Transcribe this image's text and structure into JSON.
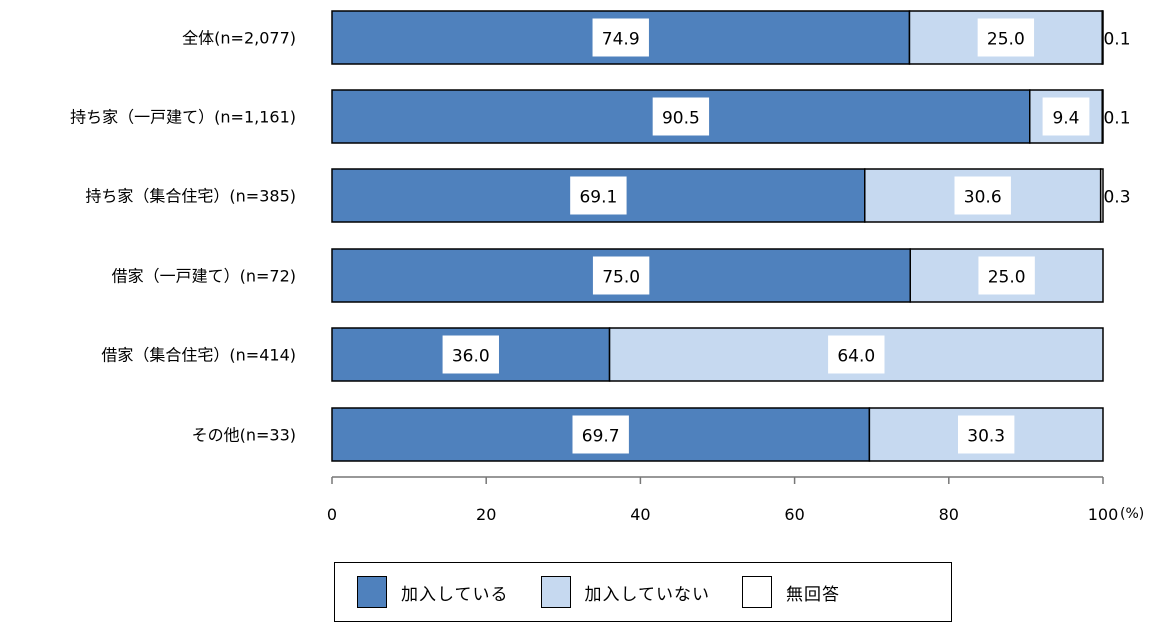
{
  "chart_data": {
    "type": "bar",
    "orientation": "horizontal",
    "stacked": true,
    "categories": [
      "全体(n=2,077)",
      "持ち家（一戸建て）(n=1,161)",
      "持ち家（集合住宅）(n=385)",
      "借家（一戸建て）(n=72)",
      "借家（集合住宅）(n=414)",
      "その他(n=33)"
    ],
    "series": [
      {
        "name": "加入している",
        "color": "#4f81bd",
        "values": [
          74.9,
          90.5,
          69.1,
          75.0,
          36.0,
          69.7
        ],
        "labels": [
          "74.9",
          "90.5",
          "69.1",
          "75.0",
          "36.0",
          "69.7"
        ]
      },
      {
        "name": "加入していない",
        "color": "#c6d9f0",
        "values": [
          25.0,
          9.4,
          30.6,
          25.0,
          64.0,
          30.3
        ],
        "labels": [
          "25.0",
          "9.4",
          "30.6",
          "25.0",
          "64.0",
          "30.3"
        ]
      },
      {
        "name": "無回答",
        "color": "#ffffff",
        "values": [
          0.1,
          0.1,
          0.3,
          0,
          0,
          0
        ],
        "labels": [
          "0.1",
          "0.1",
          "0.3",
          "",
          "",
          ""
        ]
      }
    ],
    "xlim": [
      0,
      100
    ],
    "xticks": [
      0,
      20,
      40,
      60,
      80,
      100
    ],
    "xtick_labels": [
      "0",
      "20",
      "40",
      "60",
      "80",
      "100"
    ],
    "x_unit": "(%)",
    "legend_position": "bottom",
    "grid": false
  }
}
